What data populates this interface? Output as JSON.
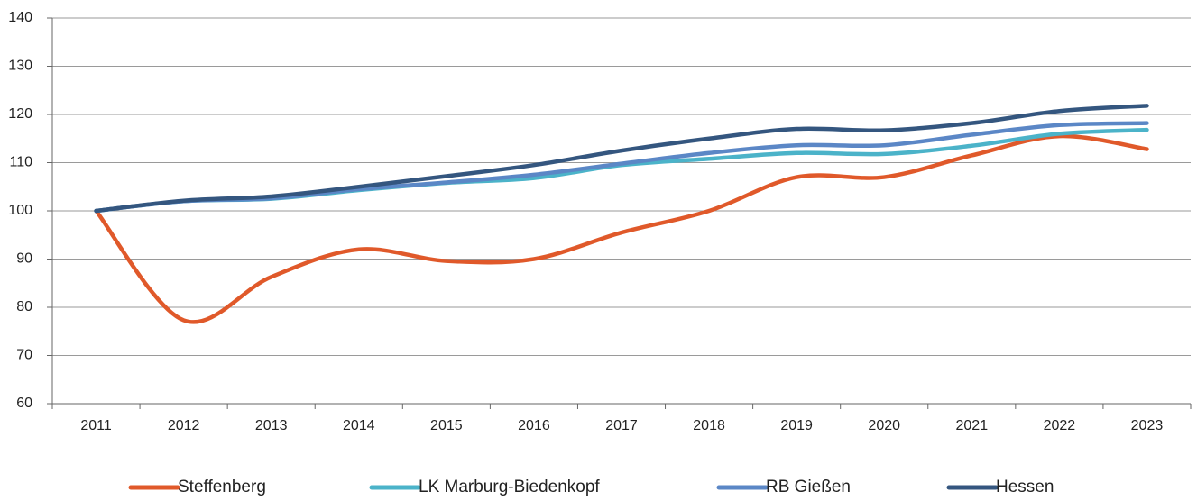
{
  "chart_data": {
    "type": "line",
    "categories": [
      "2011",
      "2012",
      "2013",
      "2014",
      "2015",
      "2016",
      "2017",
      "2018",
      "2019",
      "2020",
      "2021",
      "2022",
      "2023"
    ],
    "series": [
      {
        "name": "Steffenberg",
        "color": "#e0592a",
        "values": [
          100,
          77.3,
          86.3,
          92,
          89.6,
          90,
          95.5,
          100,
          107,
          107,
          111.5,
          115.5,
          112.8
        ]
      },
      {
        "name": "LK Marburg-Biedenkopf",
        "color": "#4bb3c9",
        "values": [
          100,
          102,
          102.5,
          104.3,
          105.8,
          106.8,
          109.5,
          110.8,
          112,
          111.8,
          113.5,
          116,
          116.8
        ]
      },
      {
        "name": "RB Gießen",
        "color": "#5b87c6",
        "values": [
          100,
          102,
          102.6,
          104.5,
          105.9,
          107.5,
          109.8,
          112,
          113.6,
          113.6,
          115.8,
          117.8,
          118.2
        ]
      },
      {
        "name": "Hessen",
        "color": "#34567f",
        "values": [
          100,
          102.1,
          103,
          105,
          107.2,
          109.5,
          112.5,
          115,
          117,
          116.7,
          118.2,
          120.7,
          121.8
        ]
      }
    ],
    "ylim": [
      60,
      140
    ],
    "yticks": [
      60,
      70,
      80,
      90,
      100,
      110,
      120,
      130,
      140
    ],
    "grid": true,
    "legend": "bottom"
  }
}
